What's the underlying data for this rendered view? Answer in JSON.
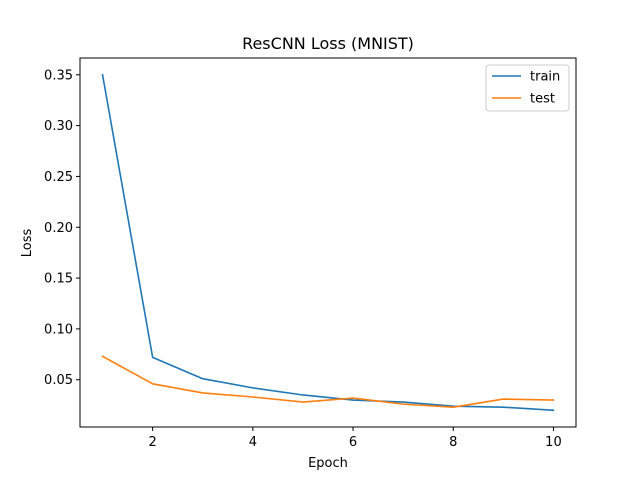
{
  "chart_data": {
    "type": "line",
    "title": "ResCNN Loss (MNIST)",
    "xlabel": "Epoch",
    "ylabel": "Loss",
    "x": [
      1,
      2,
      3,
      4,
      5,
      6,
      7,
      8,
      9,
      10
    ],
    "xlim": [
      0.55,
      10.45
    ],
    "ylim": [
      0.0035,
      0.3665
    ],
    "xticks": [
      2,
      4,
      6,
      8,
      10
    ],
    "yticks": [
      0.05,
      0.1,
      0.15,
      0.2,
      0.25,
      0.3,
      0.35
    ],
    "ytick_labels": [
      "0.05",
      "0.10",
      "0.15",
      "0.20",
      "0.25",
      "0.30",
      "0.35"
    ],
    "grid": false,
    "legend_position": "upper-right",
    "series": [
      {
        "name": "train",
        "color": "#1f77b4",
        "values": [
          0.35,
          0.072,
          0.051,
          0.042,
          0.035,
          0.03,
          0.028,
          0.024,
          0.023,
          0.02
        ]
      },
      {
        "name": "test",
        "color": "#ff7f0e",
        "values": [
          0.073,
          0.046,
          0.037,
          0.033,
          0.028,
          0.032,
          0.026,
          0.023,
          0.031,
          0.03
        ]
      }
    ]
  }
}
